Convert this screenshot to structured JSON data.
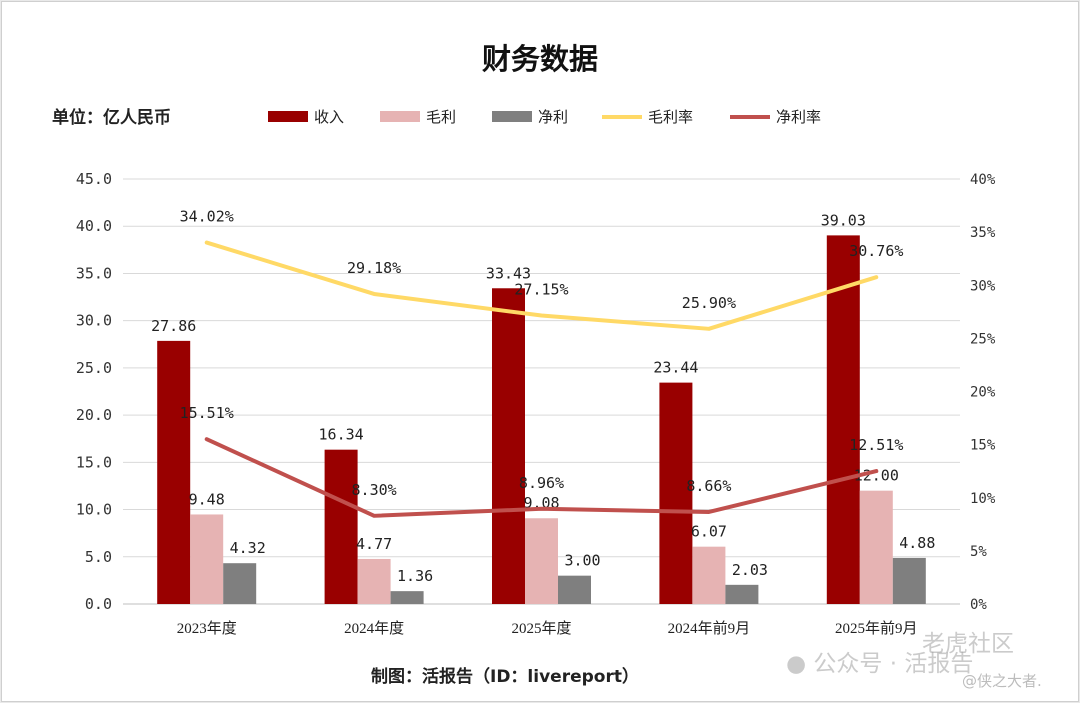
{
  "chart_data": {
    "type": "bar",
    "title": "财务数据",
    "unit_label": "单位：亿人民币",
    "categories": [
      "2023年度",
      "2024年度",
      "2025年度",
      "2024年前9月",
      "2025年前9月"
    ],
    "series": [
      {
        "name": "收入",
        "kind": "bar",
        "axis": "left",
        "color": "#990000",
        "values": [
          27.86,
          16.34,
          33.43,
          23.44,
          39.03
        ],
        "labels": [
          "27.86",
          "16.34",
          "33.43",
          "23.44",
          "39.03"
        ]
      },
      {
        "name": "毛利",
        "kind": "bar",
        "axis": "left",
        "color": "#e6b3b3",
        "values": [
          9.48,
          4.77,
          9.08,
          6.07,
          12.0
        ],
        "labels": [
          "9.48",
          "4.77",
          "9.08",
          "6.07",
          "12.00"
        ]
      },
      {
        "name": "净利",
        "kind": "bar",
        "axis": "left",
        "color": "#7f7f7f",
        "values": [
          4.32,
          1.36,
          3.0,
          2.03,
          4.88
        ],
        "labels": [
          "4.32",
          "1.36",
          "3.00",
          "2.03",
          "4.88"
        ]
      },
      {
        "name": "毛利率",
        "kind": "line",
        "axis": "right",
        "color": "#ffd966",
        "values": [
          34.02,
          29.18,
          27.15,
          25.9,
          30.76
        ],
        "labels": [
          "34.02%",
          "29.18%",
          "27.15%",
          "25.90%",
          "30.76%"
        ]
      },
      {
        "name": "净利率",
        "kind": "line",
        "axis": "right",
        "color": "#c0504d",
        "values": [
          15.51,
          8.3,
          8.96,
          8.66,
          12.51
        ],
        "labels": [
          "15.51%",
          "8.30%",
          "8.96%",
          "8.66%",
          "12.51%"
        ]
      }
    ],
    "y_left": {
      "min": 0,
      "max": 45,
      "ticks": [
        "0.0",
        "5.0",
        "10.0",
        "15.0",
        "20.0",
        "25.0",
        "30.0",
        "35.0",
        "40.0",
        "45.0"
      ]
    },
    "y_right": {
      "min": 0,
      "max": 40,
      "ticks": [
        "0%",
        "5%",
        "10%",
        "15%",
        "20%",
        "25%",
        "30%",
        "35%",
        "40%"
      ]
    },
    "grid": true,
    "legend": "top"
  },
  "footer": {
    "credit": "制图：活报告（ID：livereport）"
  },
  "watermarks": {
    "brand": "老虎社区",
    "channel": "公众号 · 活报告",
    "author": "@侠之大者."
  }
}
